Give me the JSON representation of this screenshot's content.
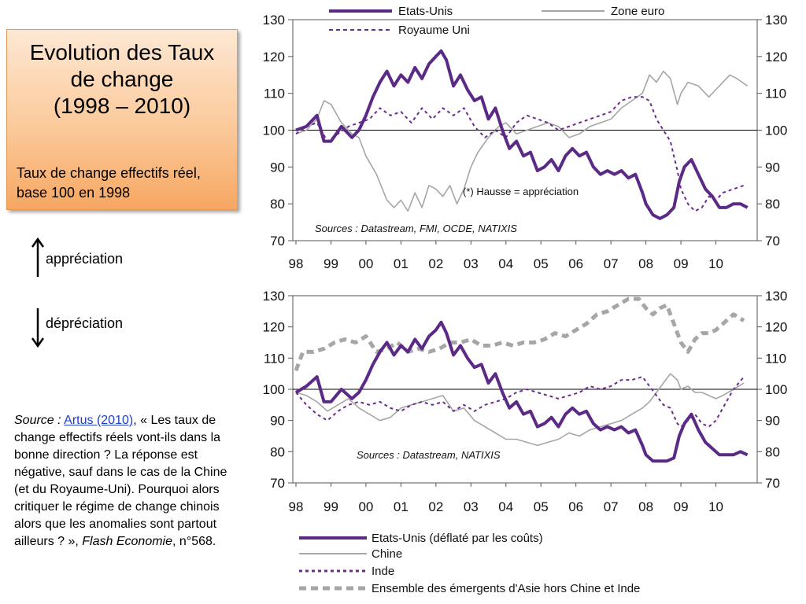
{
  "title_box": {
    "title_line1": "Evolution des Taux",
    "title_line2": "de change",
    "title_line3": "(1998 – 2010)",
    "subtitle": "Taux de change effectifs réel, base 100 en 1998"
  },
  "legend_arrows": {
    "up_label": "appréciation",
    "down_label": "dépréciation"
  },
  "source_note": {
    "label": "Source :",
    "link": "Artus (2010)",
    "quote_start": ", «  Les taux de change effectifs réels vont-ils dans la bonne direction ? La réponse est négative, sauf dans le cas de la Chine (et du Royaume-Uni). Pourquoi alors critiquer le régime de change chinois alors que les anomalies sont partout ailleurs ? »,",
    "publication": "Flash Economie",
    "number": ", n°568."
  },
  "colors": {
    "us": "#5b2a86",
    "gray": "#a6a6a6",
    "dashgray": "#a6a6a6"
  },
  "chart_data": [
    {
      "type": "line",
      "title": "",
      "x_ticks": [
        "98",
        "99",
        "00",
        "01",
        "02",
        "03",
        "04",
        "05",
        "06",
        "07",
        "08",
        "09",
        "10"
      ],
      "ylim": [
        70,
        130
      ],
      "y_ticks": [
        70,
        80,
        90,
        100,
        110,
        120,
        130
      ],
      "annotation": "(*) Hausse = appréciation",
      "sources": "Sources : Datastream, FMI, OCDE, NATIXIS",
      "series": [
        {
          "name": "Etats-Unis",
          "style": "thick-solid-purple",
          "x": [
            1998.0,
            1998.3,
            1998.6,
            1998.8,
            1999.0,
            1999.3,
            1999.6,
            1999.8,
            2000.0,
            2000.2,
            2000.4,
            2000.6,
            2000.8,
            2001.0,
            2001.2,
            2001.4,
            2001.6,
            2001.8,
            2002.0,
            2002.15,
            2002.3,
            2002.5,
            2002.7,
            2002.9,
            2003.1,
            2003.3,
            2003.5,
            2003.7,
            2003.9,
            2004.1,
            2004.3,
            2004.5,
            2004.7,
            2004.9,
            2005.1,
            2005.3,
            2005.5,
            2005.7,
            2005.9,
            2006.1,
            2006.3,
            2006.5,
            2006.7,
            2006.9,
            2007.1,
            2007.3,
            2007.5,
            2007.7,
            2007.9,
            2008.0,
            2008.2,
            2008.4,
            2008.6,
            2008.8,
            2008.95,
            2009.1,
            2009.3,
            2009.5,
            2009.7,
            2009.9,
            2010.1,
            2010.3,
            2010.5,
            2010.7,
            2010.9
          ],
          "y": [
            100,
            101,
            104,
            97,
            97,
            101,
            98,
            100,
            104,
            109,
            113,
            116,
            112,
            115,
            113,
            117,
            114,
            118,
            120,
            121.5,
            119,
            112,
            115,
            111,
            108,
            109,
            103,
            106,
            100,
            95,
            97,
            93,
            94,
            89,
            90,
            92,
            89,
            93,
            95,
            93,
            94,
            90,
            88,
            89,
            88,
            89,
            87,
            88,
            83,
            80,
            77,
            76,
            77,
            79,
            86,
            90,
            92,
            88,
            84,
            82,
            79,
            79,
            80,
            80,
            79
          ]
        },
        {
          "name": "Zone euro",
          "style": "thin-solid-gray",
          "x": [
            1998.0,
            1998.3,
            1998.6,
            1998.8,
            1999.0,
            1999.3,
            1999.6,
            1999.8,
            2000.0,
            2000.3,
            2000.6,
            2000.8,
            2001.0,
            2001.2,
            2001.4,
            2001.6,
            2001.8,
            2002.0,
            2002.2,
            2002.4,
            2002.6,
            2002.8,
            2003.0,
            2003.2,
            2003.5,
            2003.8,
            2004.0,
            2004.3,
            2004.6,
            2004.9,
            2005.2,
            2005.5,
            2005.8,
            2006.1,
            2006.4,
            2006.7,
            2007.0,
            2007.3,
            2007.6,
            2007.9,
            2008.1,
            2008.3,
            2008.5,
            2008.7,
            2008.9,
            2009.0,
            2009.2,
            2009.5,
            2009.8,
            2010.0,
            2010.2,
            2010.4,
            2010.6,
            2010.9
          ],
          "y": [
            99,
            100,
            103,
            108,
            107,
            102,
            99,
            98,
            93,
            88,
            81,
            79,
            81,
            78,
            83,
            79,
            85,
            84,
            82,
            85,
            80,
            84,
            90,
            94,
            98,
            101,
            102,
            99,
            100,
            101,
            102,
            101,
            98,
            99,
            101,
            102,
            103,
            106,
            108,
            110,
            115,
            113,
            116,
            114,
            107,
            110,
            113,
            112,
            109,
            111,
            113,
            115,
            114,
            112
          ]
        },
        {
          "name": "Royaume Uni",
          "style": "dotted-purple",
          "x": [
            1998.0,
            1998.3,
            1998.6,
            1998.9,
            1999.2,
            1999.5,
            1999.8,
            2000.1,
            2000.4,
            2000.7,
            2001.0,
            2001.3,
            2001.6,
            2001.9,
            2002.2,
            2002.5,
            2002.8,
            2003.1,
            2003.4,
            2003.7,
            2004.0,
            2004.3,
            2004.6,
            2004.9,
            2005.2,
            2005.5,
            2005.8,
            2006.1,
            2006.4,
            2006.7,
            2007.0,
            2007.3,
            2007.6,
            2007.9,
            2008.1,
            2008.3,
            2008.5,
            2008.7,
            2008.9,
            2009.0,
            2009.2,
            2009.4,
            2009.6,
            2009.8,
            2010.0,
            2010.2,
            2010.5,
            2010.8
          ],
          "y": [
            99,
            101,
            102,
            97,
            99,
            101,
            102,
            103,
            106,
            104,
            105,
            102,
            106,
            103,
            106,
            104,
            106,
            101,
            98,
            100,
            98,
            102,
            104,
            103,
            102,
            100,
            101,
            102,
            103,
            104,
            105,
            108,
            109,
            109,
            108,
            103,
            100,
            97,
            89,
            84,
            80,
            78,
            79,
            82,
            81,
            83,
            84,
            85
          ]
        }
      ]
    },
    {
      "type": "line",
      "title": "",
      "x_ticks": [
        "98",
        "99",
        "00",
        "01",
        "02",
        "03",
        "04",
        "05",
        "06",
        "07",
        "08",
        "09",
        "10"
      ],
      "ylim": [
        70,
        130
      ],
      "y_ticks": [
        70,
        80,
        90,
        100,
        110,
        120,
        130
      ],
      "sources": "Sources : Datastream, NATIXIS",
      "series": [
        {
          "name": "Etats-Unis (déflaté par les coûts)",
          "style": "thick-solid-purple",
          "x": [
            1998.0,
            1998.3,
            1998.6,
            1998.8,
            1999.0,
            1999.3,
            1999.6,
            1999.8,
            2000.0,
            2000.2,
            2000.4,
            2000.6,
            2000.8,
            2001.0,
            2001.2,
            2001.4,
            2001.6,
            2001.8,
            2002.0,
            2002.15,
            2002.3,
            2002.5,
            2002.7,
            2002.9,
            2003.1,
            2003.3,
            2003.5,
            2003.7,
            2003.9,
            2004.1,
            2004.3,
            2004.5,
            2004.7,
            2004.9,
            2005.1,
            2005.3,
            2005.5,
            2005.7,
            2005.9,
            2006.1,
            2006.3,
            2006.5,
            2006.7,
            2006.9,
            2007.1,
            2007.3,
            2007.5,
            2007.7,
            2007.9,
            2008.0,
            2008.2,
            2008.4,
            2008.6,
            2008.8,
            2008.95,
            2009.1,
            2009.3,
            2009.5,
            2009.7,
            2009.9,
            2010.1,
            2010.3,
            2010.5,
            2010.7,
            2010.9
          ],
          "y": [
            99,
            101,
            104,
            96,
            96,
            100,
            97,
            99,
            103,
            108,
            112,
            115,
            111,
            114,
            112,
            116,
            113,
            117,
            119,
            121.5,
            118,
            111,
            114,
            110,
            107,
            108,
            102,
            105,
            99,
            94,
            96,
            92,
            93,
            88,
            89,
            91,
            88,
            92,
            94,
            92,
            93,
            89,
            87,
            88,
            87,
            88,
            86,
            87,
            82,
            79,
            77,
            77,
            77,
            78,
            85,
            89,
            92,
            87,
            83,
            81,
            79,
            79,
            79,
            80,
            79
          ]
        },
        {
          "name": "Chine",
          "style": "thin-solid-gray",
          "x": [
            1998.0,
            1998.3,
            1998.6,
            1998.9,
            1999.2,
            1999.5,
            1999.8,
            2000.1,
            2000.4,
            2000.7,
            2001.0,
            2001.3,
            2001.6,
            2001.9,
            2002.2,
            2002.5,
            2002.8,
            2003.1,
            2003.4,
            2003.7,
            2004.0,
            2004.3,
            2004.6,
            2004.9,
            2005.2,
            2005.5,
            2005.8,
            2006.1,
            2006.4,
            2006.7,
            2007.0,
            2007.3,
            2007.6,
            2007.9,
            2008.1,
            2008.3,
            2008.5,
            2008.7,
            2008.9,
            2009.0,
            2009.2,
            2009.4,
            2009.6,
            2009.8,
            2010.0,
            2010.2,
            2010.5,
            2010.8
          ],
          "y": [
            99,
            98,
            96,
            93,
            95,
            97,
            94,
            92,
            90,
            91,
            94,
            95,
            96,
            97,
            98,
            93,
            94,
            90,
            88,
            86,
            84,
            84,
            83,
            82,
            83,
            84,
            86,
            85,
            87,
            88,
            89,
            90,
            92,
            94,
            96,
            99,
            102,
            105,
            103,
            100,
            101,
            99,
            99,
            98,
            97,
            98,
            100,
            102
          ]
        },
        {
          "name": "Inde",
          "style": "dotted-purple",
          "x": [
            1998.0,
            1998.3,
            1998.6,
            1998.9,
            1999.2,
            1999.5,
            1999.8,
            2000.1,
            2000.4,
            2000.7,
            2001.0,
            2001.3,
            2001.6,
            2001.9,
            2002.2,
            2002.5,
            2002.8,
            2003.1,
            2003.4,
            2003.7,
            2004.0,
            2004.3,
            2004.6,
            2004.9,
            2005.2,
            2005.5,
            2005.8,
            2006.1,
            2006.4,
            2006.7,
            2007.0,
            2007.3,
            2007.6,
            2007.9,
            2008.1,
            2008.3,
            2008.5,
            2008.7,
            2008.9,
            2009.0,
            2009.2,
            2009.4,
            2009.6,
            2009.8,
            2010.0,
            2010.2,
            2010.5,
            2010.8
          ],
          "y": [
            99,
            95,
            92,
            90,
            93,
            95,
            96,
            95,
            96,
            94,
            93,
            95,
            96,
            95,
            96,
            93,
            95,
            93,
            95,
            96,
            97,
            99,
            100,
            99,
            98,
            97,
            98,
            99,
            101,
            100,
            101,
            103,
            103,
            104,
            101,
            98,
            95,
            94,
            89,
            88,
            90,
            92,
            89,
            88,
            90,
            94,
            100,
            104
          ]
        },
        {
          "name": "Ensemble des émergents d'Asie hors Chine et Inde",
          "style": "dashed-gray",
          "x": [
            1998.0,
            1998.2,
            1998.5,
            1998.8,
            1999.1,
            1999.4,
            1999.7,
            2000.0,
            2000.3,
            2000.6,
            2000.9,
            2001.2,
            2001.5,
            2001.8,
            2002.1,
            2002.4,
            2002.7,
            2003.0,
            2003.3,
            2003.6,
            2003.9,
            2004.2,
            2004.5,
            2004.8,
            2005.1,
            2005.4,
            2005.7,
            2006.0,
            2006.3,
            2006.6,
            2006.9,
            2007.2,
            2007.5,
            2007.8,
            2008.0,
            2008.2,
            2008.4,
            2008.6,
            2008.8,
            2009.0,
            2009.2,
            2009.4,
            2009.6,
            2009.8,
            2010.0,
            2010.2,
            2010.5,
            2010.8
          ],
          "y": [
            106,
            112,
            112,
            113,
            115,
            116,
            115,
            117,
            112,
            113,
            115,
            112,
            113,
            112,
            113,
            115,
            115,
            116,
            114,
            114,
            115,
            114,
            115,
            115,
            116,
            118,
            117,
            119,
            121,
            124,
            125,
            127,
            129,
            129,
            126,
            124,
            126,
            127,
            121,
            115,
            112,
            116,
            118,
            118,
            119,
            121,
            124,
            122
          ]
        }
      ]
    }
  ],
  "legend_top": {
    "us": "Etats-Unis",
    "euro": "Zone euro",
    "uk": "Royaume Uni"
  },
  "legend_bottom": {
    "us": "Etats-Unis (déflaté par les coûts)",
    "china": "Chine",
    "india": "Inde",
    "asia": "Ensemble des émergents d'Asie hors Chine et Inde"
  }
}
